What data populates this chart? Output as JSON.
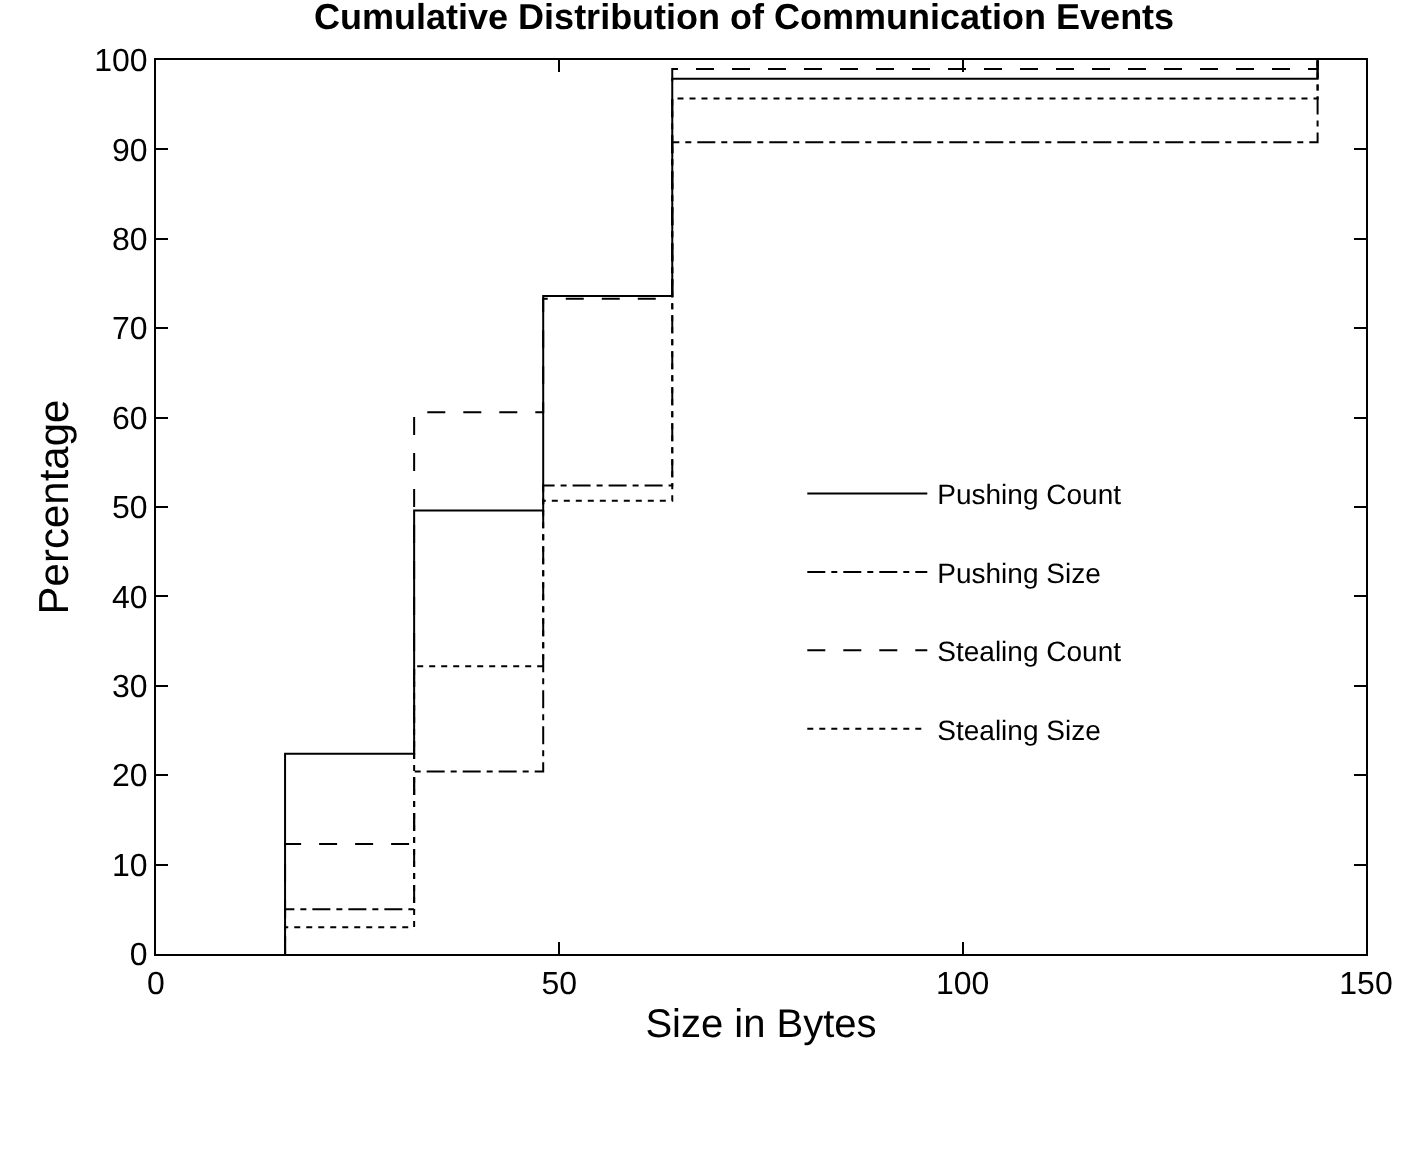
{
  "chart_data": {
    "type": "step",
    "title": "Cumulative Distribution of Communication Events",
    "xlabel": "Size in Bytes",
    "ylabel": "Percentage",
    "xlim": [
      0,
      150
    ],
    "xticks": [
      0,
      50,
      100,
      150
    ],
    "ylim": [
      0,
      100
    ],
    "yticks": [
      0,
      10,
      20,
      30,
      40,
      50,
      60,
      70,
      80,
      90,
      100
    ],
    "grid": false,
    "legend": "right",
    "marker": "none",
    "series": [
      {
        "name": "Pushing Count",
        "color": "#000000",
        "line_style": "solid",
        "x": [
          16,
          16,
          32,
          48,
          64,
          144,
          144
        ],
        "values": [
          0,
          22.4,
          49.6,
          73.6,
          97.9,
          97.9,
          100
        ]
      },
      {
        "name": "Pushing Size",
        "color": "#000000",
        "line_style": "dashdot",
        "x": [
          16,
          16,
          32,
          48,
          64,
          144,
          144
        ],
        "values": [
          0,
          5,
          20.4,
          52.4,
          90.8,
          90.8,
          100
        ]
      },
      {
        "name": "Stealing Count",
        "color": "#000000",
        "line_style": "dashed",
        "x": [
          16,
          16,
          32,
          48,
          64,
          144,
          144
        ],
        "values": [
          0,
          12.3,
          60.6,
          73.3,
          99,
          99,
          100
        ]
      },
      {
        "name": "Stealing Size",
        "color": "#000000",
        "line_style": "dotted",
        "x": [
          16,
          16,
          32,
          48,
          64,
          144,
          144
        ],
        "values": [
          0,
          3,
          32.2,
          50.7,
          95.7,
          95.7,
          100
        ]
      }
    ]
  }
}
